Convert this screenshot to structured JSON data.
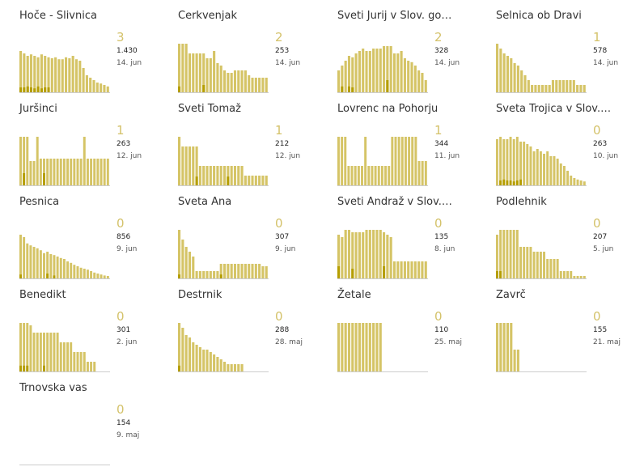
{
  "colors": {
    "bar": "#d5c466",
    "dark": "#b59e00",
    "baseline": "#cccccc",
    "number": "#d4c26a"
  },
  "chart_data": [
    {
      "type": "bar",
      "title": "Hoče - Slivnica",
      "value": "3",
      "total": "1.430",
      "date": "14. jun",
      "values": [
        0.85,
        0.8,
        0.75,
        0.78,
        0.75,
        0.72,
        0.78,
        0.75,
        0.72,
        0.7,
        0.72,
        0.68,
        0.68,
        0.72,
        0.7,
        0.75,
        0.68,
        0.65,
        0.5,
        0.35,
        0.3,
        0.25,
        0.2,
        0.18,
        0.15,
        0.12
      ],
      "dark": [
        0.1,
        0.1,
        0.12,
        0.1,
        0.08,
        0.12,
        0.08,
        0.1,
        0.1,
        0,
        0,
        0,
        0,
        0,
        0,
        0,
        0,
        0,
        0,
        0,
        0,
        0,
        0,
        0,
        0,
        0
      ]
    },
    {
      "type": "bar",
      "title": "Cerkvenjak",
      "value": "2",
      "total": "253",
      "date": "14. jun",
      "values": [
        1.0,
        1.0,
        1.0,
        0.8,
        0.8,
        0.8,
        0.8,
        0.8,
        0.7,
        0.7,
        0.85,
        0.6,
        0.55,
        0.45,
        0.4,
        0.4,
        0.45,
        0.45,
        0.45,
        0.45,
        0.35,
        0.3,
        0.3,
        0.3,
        0.3,
        0.3
      ],
      "dark": [
        0.12,
        0,
        0,
        0,
        0,
        0,
        0,
        0.15,
        0,
        0,
        0,
        0,
        0,
        0,
        0,
        0,
        0,
        0,
        0,
        0,
        0,
        0,
        0,
        0,
        0,
        0
      ]
    },
    {
      "type": "bar",
      "title": "Sveti Jurij v Slov. go…",
      "value": "2",
      "total": "328",
      "date": "14. jun",
      "values": [
        0.45,
        0.55,
        0.65,
        0.75,
        0.72,
        0.8,
        0.85,
        0.9,
        0.85,
        0.85,
        0.9,
        0.9,
        0.9,
        0.95,
        0.95,
        0.95,
        0.8,
        0.8,
        0.85,
        0.7,
        0.65,
        0.62,
        0.55,
        0.45,
        0.4,
        0.25
      ],
      "dark": [
        0,
        0.12,
        0,
        0.12,
        0.1,
        0,
        0,
        0,
        0,
        0,
        0,
        0,
        0,
        0,
        0.25,
        0,
        0,
        0,
        0,
        0,
        0,
        0,
        0,
        0,
        0,
        0
      ]
    },
    {
      "type": "bar",
      "title": "Selnica ob Dravi",
      "value": "1",
      "total": "578",
      "date": "14. jun",
      "values": [
        1.0,
        0.9,
        0.8,
        0.75,
        0.7,
        0.6,
        0.55,
        0.45,
        0.35,
        0.25,
        0.15,
        0.15,
        0.15,
        0.15,
        0.15,
        0.15,
        0.25,
        0.25,
        0.25,
        0.25,
        0.25,
        0.25,
        0.25,
        0.15,
        0.15,
        0.15
      ],
      "dark": [
        0,
        0,
        0,
        0,
        0,
        0,
        0,
        0,
        0,
        0,
        0,
        0,
        0,
        0,
        0,
        0,
        0,
        0,
        0,
        0,
        0,
        0,
        0,
        0,
        0,
        0
      ]
    },
    {
      "type": "bar",
      "title": "Juršinci",
      "value": "1",
      "total": "263",
      "date": "12. jun",
      "values": [
        1.0,
        1.0,
        1.0,
        0.5,
        0.5,
        1.0,
        0.55,
        0.55,
        0.55,
        0.55,
        0.55,
        0.55,
        0.55,
        0.55,
        0.55,
        0.55,
        0.55,
        0.55,
        0.55,
        1.0,
        0.55,
        0.55,
        0.55,
        0.55,
        0.55,
        0.55,
        0.55
      ],
      "dark": [
        0,
        0.25,
        0,
        0,
        0,
        0,
        0,
        0.25,
        0,
        0,
        0,
        0,
        0,
        0,
        0,
        0,
        0,
        0,
        0,
        0,
        0,
        0,
        0,
        0,
        0,
        0,
        0
      ]
    },
    {
      "type": "bar",
      "title": "Sveti Tomaž",
      "value": "1",
      "total": "212",
      "date": "12. jun",
      "values": [
        1.0,
        0.8,
        0.8,
        0.8,
        0.8,
        0.8,
        0.4,
        0.4,
        0.4,
        0.4,
        0.4,
        0.4,
        0.4,
        0.4,
        0.4,
        0.4,
        0.4,
        0.4,
        0.4,
        0.2,
        0.2,
        0.2,
        0.2,
        0.2,
        0.2,
        0.2
      ],
      "dark": [
        0,
        0,
        0,
        0,
        0,
        0.18,
        0,
        0,
        0,
        0,
        0,
        0,
        0,
        0,
        0.18,
        0,
        0,
        0,
        0,
        0,
        0,
        0,
        0,
        0,
        0,
        0
      ]
    },
    {
      "type": "bar",
      "title": "Lovrenc na Pohorju",
      "value": "1",
      "total": "344",
      "date": "11. jun",
      "values": [
        1.0,
        1.0,
        1.0,
        0.4,
        0.4,
        0.4,
        0.4,
        0.4,
        1.0,
        0.4,
        0.4,
        0.4,
        0.4,
        0.4,
        0.4,
        0.4,
        1.0,
        1.0,
        1.0,
        1.0,
        1.0,
        1.0,
        1.0,
        1.0,
        0.5,
        0.5,
        0.5
      ],
      "dark": [
        0,
        0,
        0,
        0,
        0,
        0,
        0,
        0,
        0,
        0,
        0,
        0,
        0,
        0,
        0,
        0,
        0,
        0,
        0,
        0,
        0,
        0,
        0,
        0,
        0,
        0,
        0
      ]
    },
    {
      "type": "bar",
      "title": "Sveta Trojica v Slov.…",
      "value": "0",
      "total": "263",
      "date": "10. jun",
      "values": [
        0.95,
        1.0,
        0.95,
        0.95,
        1.0,
        0.95,
        1.0,
        0.9,
        0.9,
        0.85,
        0.8,
        0.7,
        0.75,
        0.7,
        0.65,
        0.7,
        0.6,
        0.6,
        0.55,
        0.45,
        0.4,
        0.3,
        0.2,
        0.15,
        0.12,
        0.1,
        0.08
      ],
      "dark": [
        0,
        0.1,
        0.12,
        0.1,
        0.1,
        0.08,
        0.1,
        0.12,
        0,
        0,
        0,
        0,
        0,
        0,
        0,
        0,
        0,
        0,
        0,
        0,
        0,
        0,
        0,
        0,
        0,
        0,
        0
      ]
    },
    {
      "type": "bar",
      "title": "Pesnica",
      "value": "0",
      "total": "856",
      "date": "9. jun",
      "values": [
        0.9,
        0.85,
        0.72,
        0.68,
        0.65,
        0.62,
        0.58,
        0.52,
        0.55,
        0.5,
        0.48,
        0.45,
        0.42,
        0.4,
        0.35,
        0.32,
        0.28,
        0.25,
        0.22,
        0.2,
        0.18,
        0.15,
        0.12,
        0.1,
        0.08,
        0.06,
        0.05
      ],
      "dark": [
        0.08,
        0,
        0,
        0,
        0,
        0,
        0,
        0,
        0.1,
        0,
        0.06,
        0,
        0,
        0,
        0,
        0,
        0,
        0,
        0,
        0,
        0,
        0,
        0,
        0,
        0,
        0,
        0
      ]
    },
    {
      "type": "bar",
      "title": "Sveta Ana",
      "value": "0",
      "total": "307",
      "date": "9. jun",
      "values": [
        1.0,
        0.8,
        0.65,
        0.55,
        0.45,
        0.15,
        0.15,
        0.15,
        0.15,
        0.15,
        0.15,
        0.15,
        0.3,
        0.3,
        0.3,
        0.3,
        0.3,
        0.3,
        0.3,
        0.3,
        0.3,
        0.3,
        0.3,
        0.3,
        0.25,
        0.25
      ],
      "dark": [
        0.08,
        0,
        0,
        0,
        0,
        0,
        0,
        0,
        0,
        0,
        0,
        0,
        0.08,
        0,
        0,
        0,
        0,
        0,
        0,
        0,
        0,
        0,
        0,
        0,
        0,
        0
      ]
    },
    {
      "type": "bar",
      "title": "Sveti Andraž v Slov.…",
      "value": "0",
      "total": "135",
      "date": "8. jun",
      "values": [
        0.9,
        0.85,
        1.0,
        1.0,
        0.95,
        0.95,
        0.95,
        0.95,
        1.0,
        1.0,
        1.0,
        1.0,
        1.0,
        0.95,
        0.9,
        0.85,
        0.35,
        0.35,
        0.35,
        0.35,
        0.35,
        0.35,
        0.35,
        0.35,
        0.35,
        0.35
      ],
      "dark": [
        0.25,
        0,
        0,
        0,
        0.2,
        0,
        0,
        0,
        0,
        0,
        0,
        0,
        0,
        0.25,
        0,
        0,
        0,
        0,
        0,
        0,
        0,
        0,
        0,
        0,
        0,
        0
      ]
    },
    {
      "type": "bar",
      "title": "Podlehnik",
      "value": "0",
      "total": "207",
      "date": "5. jun",
      "values": [
        0.9,
        1.0,
        1.0,
        1.0,
        1.0,
        1.0,
        1.0,
        0.65,
        0.65,
        0.65,
        0.65,
        0.55,
        0.55,
        0.55,
        0.55,
        0.4,
        0.4,
        0.4,
        0.4,
        0.15,
        0.15,
        0.15,
        0.15,
        0.05,
        0.05,
        0.05,
        0.05
      ],
      "dark": [
        0.15,
        0.15,
        0,
        0,
        0,
        0,
        0,
        0,
        0,
        0,
        0,
        0,
        0,
        0,
        0,
        0,
        0,
        0,
        0,
        0,
        0,
        0,
        0,
        0,
        0,
        0,
        0
      ]
    },
    {
      "type": "bar",
      "title": "Benedikt",
      "value": "0",
      "total": "301",
      "date": "2. jun",
      "values": [
        1.0,
        1.0,
        1.0,
        0.95,
        0.8,
        0.8,
        0.8,
        0.8,
        0.8,
        0.8,
        0.8,
        0.8,
        0.6,
        0.6,
        0.6,
        0.6,
        0.4,
        0.4,
        0.4,
        0.4,
        0.2,
        0.2,
        0.2,
        0,
        0,
        0,
        0
      ],
      "dark": [
        0.12,
        0.12,
        0.12,
        0,
        0,
        0,
        0,
        0.12,
        0,
        0,
        0,
        0,
        0,
        0,
        0,
        0,
        0,
        0,
        0,
        0,
        0,
        0,
        0,
        0,
        0,
        0,
        0
      ]
    },
    {
      "type": "bar",
      "title": "Destrnik",
      "value": "0",
      "total": "288",
      "date": "28. maj",
      "values": [
        1.0,
        0.9,
        0.75,
        0.7,
        0.6,
        0.55,
        0.5,
        0.45,
        0.45,
        0.4,
        0.35,
        0.3,
        0.25,
        0.2,
        0.15,
        0.15,
        0.15,
        0.15,
        0.15,
        0,
        0,
        0,
        0,
        0,
        0,
        0
      ],
      "dark": [
        0.12,
        0,
        0,
        0,
        0,
        0,
        0,
        0,
        0,
        0,
        0,
        0,
        0,
        0,
        0,
        0,
        0,
        0,
        0,
        0,
        0,
        0,
        0,
        0,
        0,
        0
      ]
    },
    {
      "type": "bar",
      "title": "Žetale",
      "value": "0",
      "total": "110",
      "date": "25. maj",
      "values": [
        1.0,
        1.0,
        1.0,
        1.0,
        1.0,
        1.0,
        1.0,
        1.0,
        1.0,
        1.0,
        1.0,
        1.0,
        1.0,
        0,
        0,
        0,
        0,
        0,
        0,
        0,
        0,
        0,
        0,
        0,
        0,
        0
      ],
      "dark": [
        0,
        0,
        0,
        0,
        0,
        0,
        0,
        0,
        0,
        0,
        0,
        0,
        0,
        0,
        0,
        0,
        0,
        0,
        0,
        0,
        0,
        0,
        0,
        0,
        0,
        0
      ]
    },
    {
      "type": "bar",
      "title": "Zavrč",
      "value": "0",
      "total": "155",
      "date": "21. maj",
      "values": [
        1.0,
        1.0,
        1.0,
        1.0,
        1.0,
        0.45,
        0.45,
        0,
        0,
        0,
        0,
        0,
        0,
        0,
        0,
        0,
        0,
        0,
        0,
        0,
        0,
        0,
        0,
        0,
        0,
        0
      ],
      "dark": [
        0,
        0,
        0,
        0,
        0,
        0,
        0,
        0,
        0,
        0,
        0,
        0,
        0,
        0,
        0,
        0,
        0,
        0,
        0,
        0,
        0,
        0,
        0,
        0,
        0,
        0
      ]
    },
    {
      "type": "bar",
      "title": "Trnovska vas",
      "value": "0",
      "total": "154",
      "date": "9. maj",
      "values": [
        0,
        0,
        0,
        0,
        0,
        0,
        0,
        0,
        0,
        0,
        0,
        0,
        0,
        0,
        0,
        0,
        0,
        0,
        0,
        0,
        0,
        0,
        0,
        0,
        0,
        0
      ],
      "dark": [
        0,
        0,
        0,
        0,
        0,
        0,
        0,
        0,
        0,
        0,
        0,
        0,
        0,
        0,
        0,
        0,
        0,
        0,
        0,
        0,
        0,
        0,
        0,
        0,
        0,
        0
      ]
    }
  ]
}
